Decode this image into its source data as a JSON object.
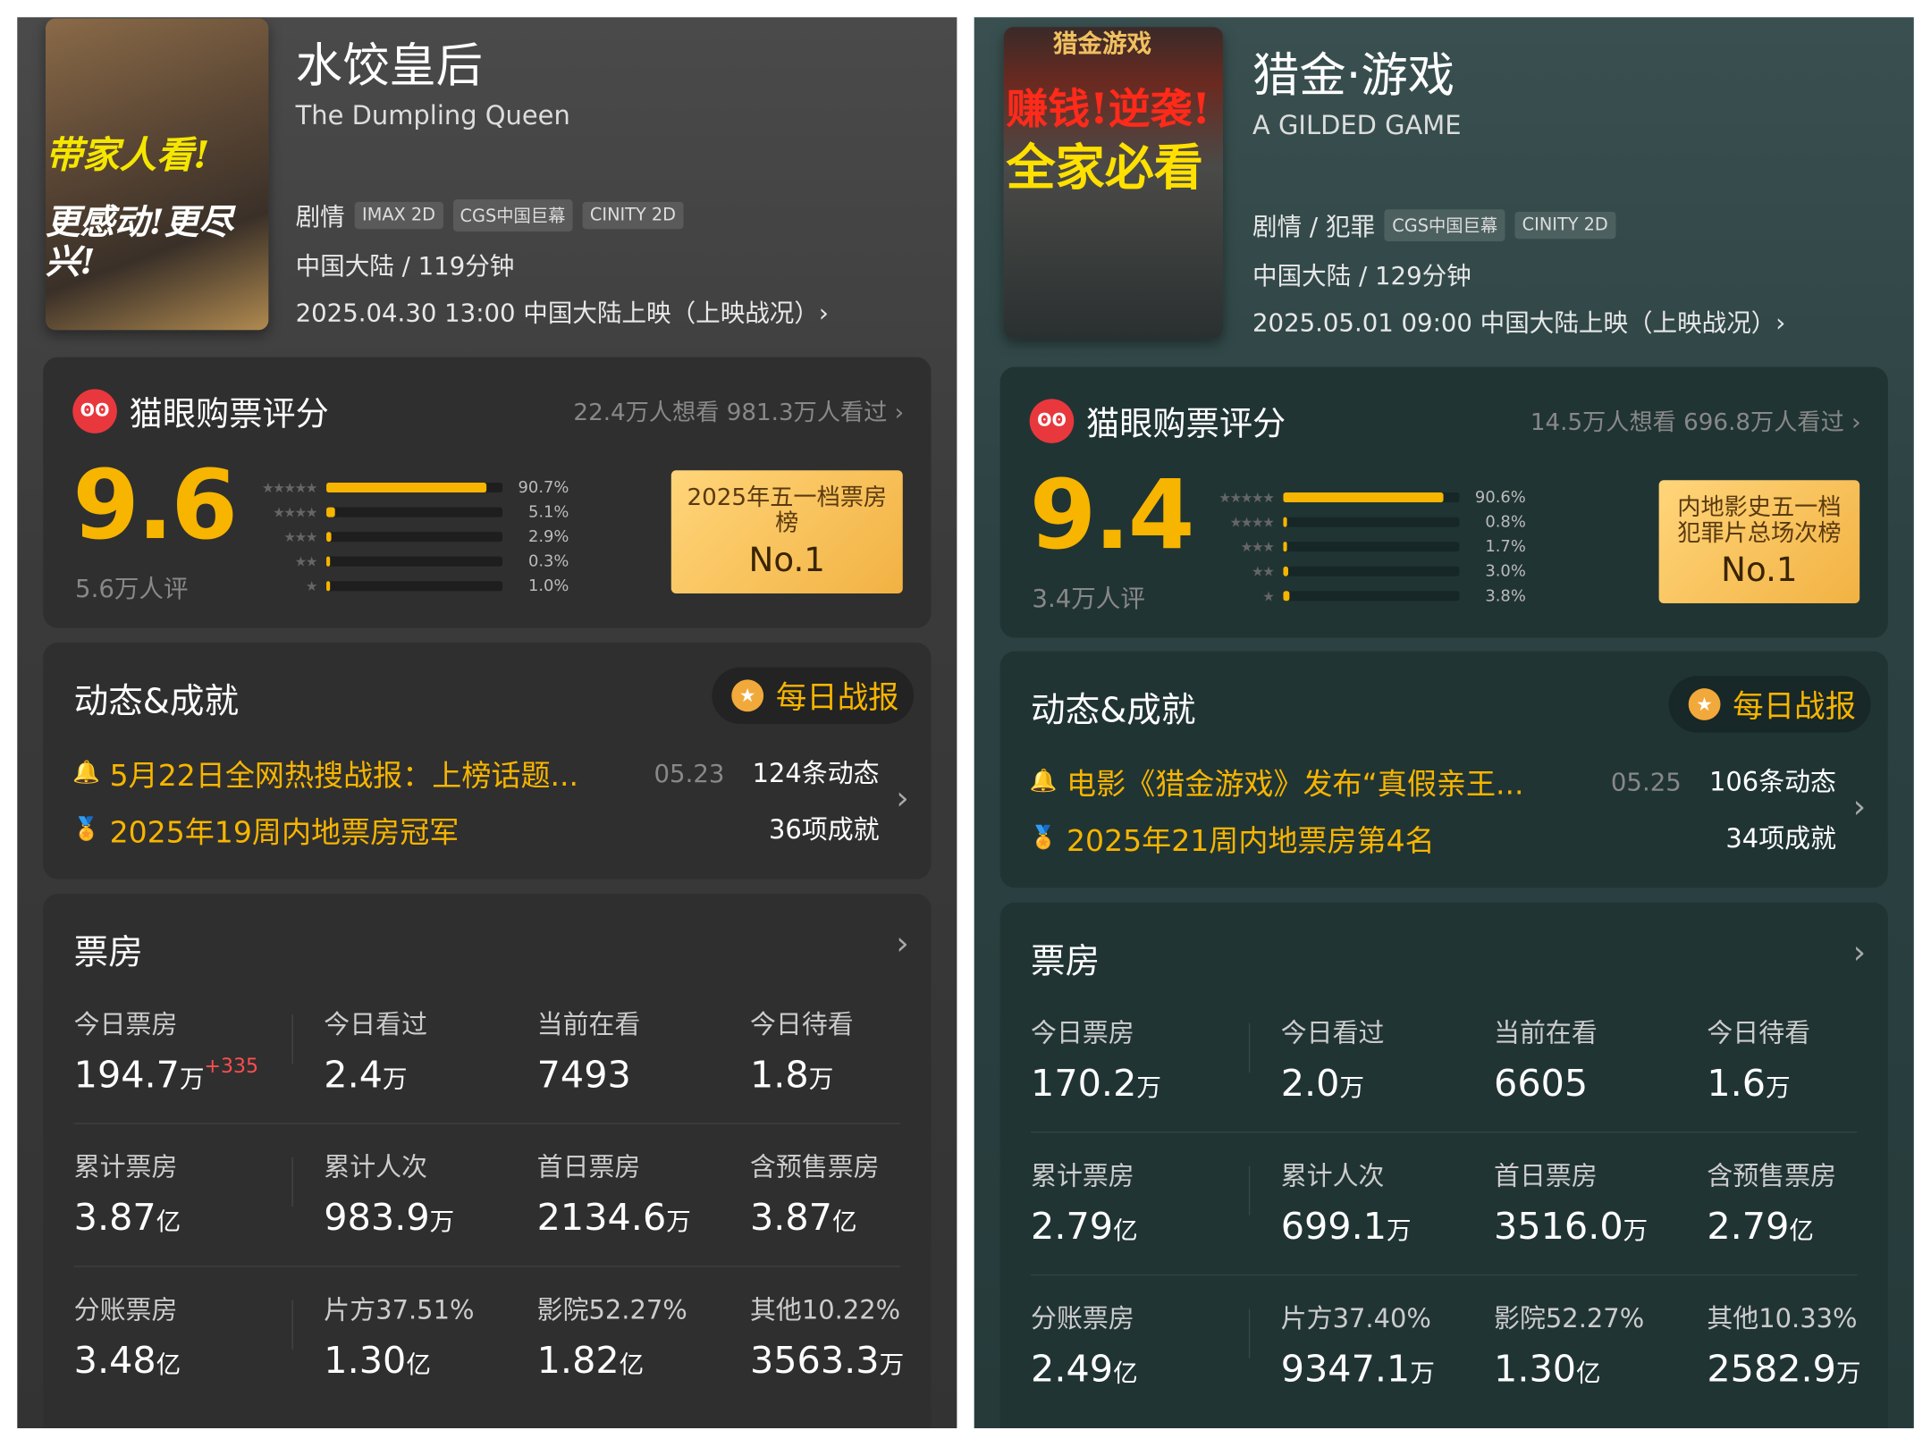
{
  "colors": {
    "accent": "#f7b500",
    "delta": "#ff4d4f",
    "maoyan_red": "#e8383d"
  },
  "movies": [
    {
      "poster": {
        "slogan": [
          "带家人看!",
          "更感动!更尽兴!"
        ],
        "slogan_colors": [
          "#f5e600",
          "#ffffff"
        ]
      },
      "title": "水饺皇后",
      "subtitle": "The Dumpling Queen",
      "genre": "剧情",
      "tags": [
        "IMAX 2D",
        "CGS中国巨幕",
        "CINITY 2D"
      ],
      "region": "中国大陆 / 119分钟",
      "release": "2025.04.30 13:00 中国大陆上映（上映战况）›",
      "rating": {
        "logo": "maoyan-cat-icon",
        "title": "猫眼购票评分",
        "stats": "22.4万人想看 981.3万人看过 ›",
        "score": "9.6",
        "count": "5.6万人评",
        "distribution": [
          {
            "stars": "★★★★★",
            "pct": "90.7%",
            "value": 90.7
          },
          {
            "stars": "★★★★",
            "pct": "5.1%",
            "value": 5.1
          },
          {
            "stars": "★★★",
            "pct": "2.9%",
            "value": 2.9
          },
          {
            "stars": "★★",
            "pct": "0.3%",
            "value": 0.3
          },
          {
            "stars": "★",
            "pct": "1.0%",
            "value": 1.0
          }
        ],
        "badge": {
          "text": "2025年五一档票房榜",
          "rank": "No.1"
        }
      },
      "dynamics": {
        "title": "动态&成就",
        "daily_button": "每日战报",
        "news": "5月22日全网热搜战报：上榜话题...",
        "news_date": "05.23",
        "news_count": "124条动态",
        "achievement": "2025年19周内地票房冠军",
        "achievement_count": "36项成就"
      },
      "box_office": {
        "title": "票房",
        "rows": [
          [
            {
              "label": "今日票房",
              "value": "194.7",
              "unit": "万",
              "delta": "+335"
            },
            {
              "label": "今日看过",
              "value": "2.4",
              "unit": "万"
            },
            {
              "label": "当前在看",
              "value": "7493",
              "unit": ""
            },
            {
              "label": "今日待看",
              "value": "1.8",
              "unit": "万"
            }
          ],
          [
            {
              "label": "累计票房",
              "value": "3.87",
              "unit": "亿"
            },
            {
              "label": "累计人次",
              "value": "983.9",
              "unit": "万"
            },
            {
              "label": "首日票房",
              "value": "2134.6",
              "unit": "万"
            },
            {
              "label": "含预售票房",
              "value": "3.87",
              "unit": "亿"
            }
          ],
          [
            {
              "label": "分账票房",
              "value": "3.48",
              "unit": "亿"
            },
            {
              "label": "片方37.51%",
              "value": "1.30",
              "unit": "亿"
            },
            {
              "label": "影院52.27%",
              "value": "1.82",
              "unit": "亿"
            },
            {
              "label": "其他10.22%",
              "value": "3563.3",
              "unit": "万"
            }
          ]
        ]
      }
    },
    {
      "poster": {
        "slogan": [
          "猎金游戏",
          "赚钱!逆袭!",
          "全家必看"
        ],
        "slogan_colors": [
          "#f0c060",
          "#ff2a1a",
          "#ffe000"
        ]
      },
      "title": "猎金·游戏",
      "subtitle": "A GILDED GAME",
      "genre": "剧情 / 犯罪",
      "tags": [
        "CGS中国巨幕",
        "CINITY 2D"
      ],
      "region": "中国大陆 / 129分钟",
      "release": "2025.05.01 09:00 中国大陆上映（上映战况）›",
      "rating": {
        "logo": "maoyan-cat-icon",
        "title": "猫眼购票评分",
        "stats": "14.5万人想看 696.8万人看过 ›",
        "score": "9.4",
        "count": "3.4万人评",
        "distribution": [
          {
            "stars": "★★★★★",
            "pct": "90.6%",
            "value": 90.6
          },
          {
            "stars": "★★★★",
            "pct": "0.8%",
            "value": 0.8
          },
          {
            "stars": "★★★",
            "pct": "1.7%",
            "value": 1.7
          },
          {
            "stars": "★★",
            "pct": "3.0%",
            "value": 3.0
          },
          {
            "stars": "★",
            "pct": "3.8%",
            "value": 3.8
          }
        ],
        "badge": {
          "text": "内地影史五一档犯罪片总场次榜",
          "rank": "No.1"
        }
      },
      "dynamics": {
        "title": "动态&成就",
        "daily_button": "每日战报",
        "news": "电影《猎金游戏》发布“真假亲王...",
        "news_date": "05.25",
        "news_count": "106条动态",
        "achievement": "2025年21周内地票房第4名",
        "achievement_count": "34项成就"
      },
      "box_office": {
        "title": "票房",
        "rows": [
          [
            {
              "label": "今日票房",
              "value": "170.2",
              "unit": "万"
            },
            {
              "label": "今日看过",
              "value": "2.0",
              "unit": "万"
            },
            {
              "label": "当前在看",
              "value": "6605",
              "unit": ""
            },
            {
              "label": "今日待看",
              "value": "1.6",
              "unit": "万"
            }
          ],
          [
            {
              "label": "累计票房",
              "value": "2.79",
              "unit": "亿"
            },
            {
              "label": "累计人次",
              "value": "699.1",
              "unit": "万"
            },
            {
              "label": "首日票房",
              "value": "3516.0",
              "unit": "万"
            },
            {
              "label": "含预售票房",
              "value": "2.79",
              "unit": "亿"
            }
          ],
          [
            {
              "label": "分账票房",
              "value": "2.49",
              "unit": "亿"
            },
            {
              "label": "片方37.40%",
              "value": "9347.1",
              "unit": "万"
            },
            {
              "label": "影院52.27%",
              "value": "1.30",
              "unit": "亿"
            },
            {
              "label": "其他10.33%",
              "value": "2582.9",
              "unit": "万"
            }
          ]
        ]
      }
    }
  ]
}
